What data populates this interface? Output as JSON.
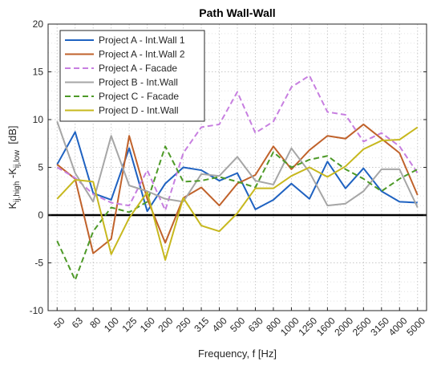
{
  "chart_data": {
    "type": "line",
    "title": "Path Wall-Wall",
    "xlabel": "Frequency, f [Hz]",
    "ylabel_parts": {
      "k1": "K",
      "sub1": "ij,high",
      "mid": " -K",
      "sub2": "ij,low",
      "unit": "  [dB]"
    },
    "categories": [
      "50",
      "63",
      "80",
      "100",
      "125",
      "160",
      "200",
      "250",
      "315",
      "400",
      "500",
      "630",
      "800",
      "1000",
      "1250",
      "1600",
      "2000",
      "2500",
      "3150",
      "4000",
      "5000"
    ],
    "ylim": [
      -10,
      20
    ],
    "yticks": [
      -10,
      -5,
      0,
      5,
      10,
      15,
      20
    ],
    "grid": true,
    "grid_style": "dotted",
    "zero_line": true,
    "legend_position": "top-left",
    "series": [
      {
        "name": "Project A - Int.Wall 1",
        "color": "#1f62c1",
        "dash": "solid",
        "values": [
          5.3,
          8.7,
          2.3,
          1.6,
          7.0,
          0.4,
          3.3,
          5.0,
          4.7,
          3.6,
          4.4,
          0.6,
          1.6,
          3.3,
          1.7,
          5.6,
          2.8,
          4.9,
          2.5,
          1.4,
          1.3
        ]
      },
      {
        "name": "Project A - Int.Wall 2",
        "color": "#c0622b",
        "dash": "solid",
        "values": [
          5.3,
          3.8,
          -4.0,
          -2.5,
          8.3,
          1.7,
          -2.9,
          1.8,
          2.9,
          1.0,
          3.3,
          4.2,
          7.2,
          4.8,
          6.8,
          8.3,
          8.0,
          9.5,
          8.0,
          6.5,
          2.1
        ]
      },
      {
        "name": "Project A - Facade",
        "color": "#c77fe0",
        "dash": "dashed",
        "values": [
          5.0,
          3.9,
          2.2,
          1.3,
          1.0,
          4.7,
          0.5,
          6.5,
          9.2,
          9.5,
          12.9,
          8.6,
          9.8,
          13.4,
          14.6,
          10.8,
          10.5,
          7.7,
          8.6,
          7.2,
          4.4
        ]
      },
      {
        "name": "Project B - Int.Wall",
        "color": "#a6a6a6",
        "dash": "solid",
        "values": [
          9.8,
          4.4,
          1.4,
          8.3,
          3.1,
          2.5,
          1.7,
          1.4,
          4.3,
          4.1,
          6.1,
          3.6,
          3.2,
          7.0,
          4.5,
          1.0,
          1.2,
          2.5,
          4.8,
          4.8,
          0.8
        ]
      },
      {
        "name": "Project C - Facade",
        "color": "#4e9a28",
        "dash": "dashed",
        "values": [
          -2.7,
          -6.8,
          -1.7,
          0.8,
          0.3,
          1.4,
          7.2,
          3.5,
          3.6,
          4.0,
          3.5,
          2.9,
          6.6,
          5.0,
          5.8,
          6.2,
          4.8,
          3.8,
          2.5,
          3.8,
          4.8
        ]
      },
      {
        "name": "Project D - Int.Wall",
        "color": "#c7b81e",
        "dash": "solid",
        "values": [
          1.7,
          3.7,
          3.5,
          -4.1,
          -0.3,
          2.4,
          -4.7,
          1.8,
          -1.1,
          -1.7,
          0.2,
          2.8,
          2.8,
          4.1,
          5.0,
          4.0,
          5.1,
          6.9,
          7.8,
          7.9,
          9.2
        ]
      }
    ]
  }
}
